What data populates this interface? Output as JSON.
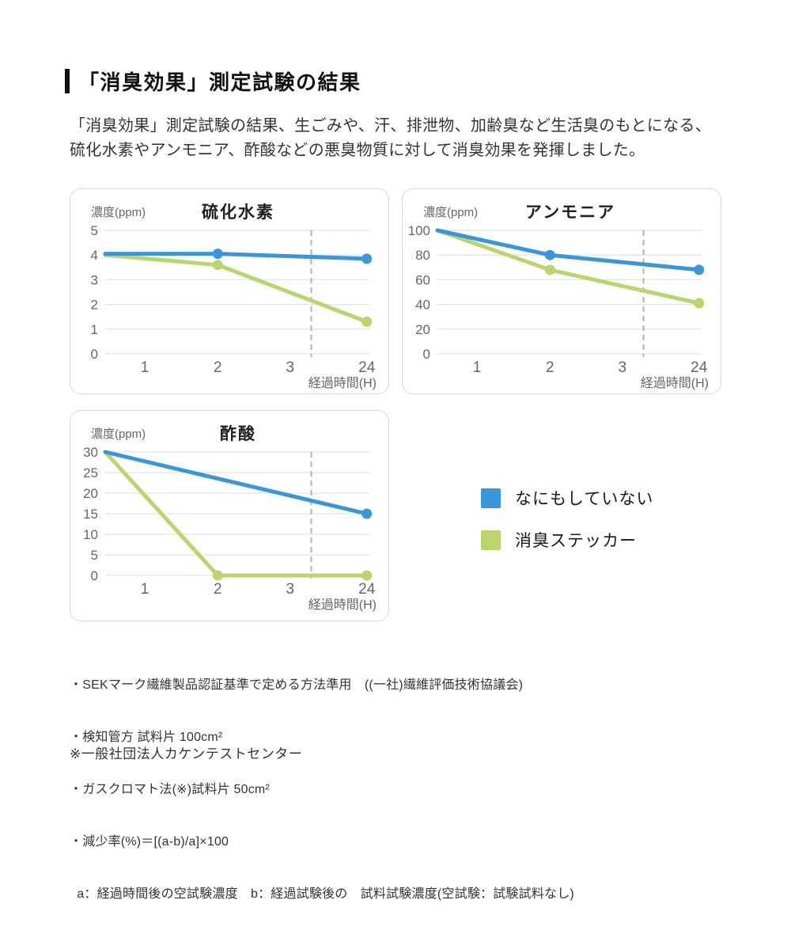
{
  "header": {
    "title": "「消臭効果」測定試験の結果"
  },
  "intro": {
    "line1": "「消臭効果」測定試験の結果、生ごみや、汗、排泄物、加齢臭など生活臭のもとになる、",
    "line2": "硫化水素やアンモニア、酢酸などの悪臭物質に対して消臭効果を発揮しました。"
  },
  "colors": {
    "blue": "#3A96DB",
    "green": "#BAD56C",
    "grid": "#e4e4e4",
    "dashed": "#b0b0b0",
    "axis_text": "#666666",
    "chart_title_text": "#222222",
    "panel_border": "#d8d8d8"
  },
  "legend": {
    "items": [
      {
        "label": "なにもしていない",
        "color": "#3A96DB"
      },
      {
        "label": "消臭ステッカー",
        "color": "#BAD56C"
      }
    ]
  },
  "chart_data": [
    {
      "type": "line",
      "title": "硫化水素",
      "ylabel": "濃度(ppm)",
      "xlabel": "経過時間(H)",
      "x_tick_labels": [
        "1",
        "2",
        "3",
        "24"
      ],
      "x_tick_hours": [
        1,
        2,
        3,
        24
      ],
      "y_ticks": [
        0,
        1,
        2,
        3,
        4,
        5
      ],
      "ylim": [
        0,
        5
      ],
      "grid": true,
      "dashed_break_line_between": "3 and 24",
      "series": [
        {
          "name": "なにもしていない",
          "color": "#3A96DB",
          "points": [
            {
              "h": 0,
              "v": 4.05
            },
            {
              "h": 2,
              "v": 4.05
            },
            {
              "h": 24,
              "v": 3.85
            }
          ],
          "marker_hours": [
            2,
            24
          ]
        },
        {
          "name": "消臭ステッカー",
          "color": "#BAD56C",
          "points": [
            {
              "h": 0,
              "v": 4.0
            },
            {
              "h": 2,
              "v": 3.6
            },
            {
              "h": 24,
              "v": 1.3
            }
          ],
          "marker_hours": [
            2,
            24
          ]
        }
      ]
    },
    {
      "type": "line",
      "title": "アンモニア",
      "ylabel": "濃度(ppm)",
      "xlabel": "経過時間(H)",
      "x_tick_labels": [
        "1",
        "2",
        "3",
        "24"
      ],
      "x_tick_hours": [
        1,
        2,
        3,
        24
      ],
      "y_ticks": [
        0,
        20,
        40,
        60,
        80,
        100
      ],
      "ylim": [
        0,
        100
      ],
      "grid": true,
      "dashed_break_line_between": "3 and 24",
      "series": [
        {
          "name": "なにもしていない",
          "color": "#3A96DB",
          "points": [
            {
              "h": 0,
              "v": 100
            },
            {
              "h": 2,
              "v": 80
            },
            {
              "h": 24,
              "v": 68
            }
          ],
          "marker_hours": [
            2,
            24
          ]
        },
        {
          "name": "消臭ステッカー",
          "color": "#BAD56C",
          "points": [
            {
              "h": 0,
              "v": 100
            },
            {
              "h": 2,
              "v": 68
            },
            {
              "h": 24,
              "v": 41
            }
          ],
          "marker_hours": [
            2,
            24
          ]
        }
      ]
    },
    {
      "type": "line",
      "title": "酢酸",
      "ylabel": "濃度(ppm)",
      "xlabel": "経過時間(H)",
      "x_tick_labels": [
        "1",
        "2",
        "3",
        "24"
      ],
      "x_tick_hours": [
        1,
        2,
        3,
        24
      ],
      "y_ticks": [
        0,
        5,
        10,
        15,
        20,
        25,
        30
      ],
      "ylim": [
        0,
        30
      ],
      "grid": true,
      "dashed_break_line_between": "3 and 24",
      "series": [
        {
          "name": "なにもしていない",
          "color": "#3A96DB",
          "points": [
            {
              "h": 0,
              "v": 30
            },
            {
              "h": 24,
              "v": 15
            }
          ],
          "marker_hours": [
            24
          ]
        },
        {
          "name": "消臭ステッカー",
          "color": "#BAD56C",
          "points": [
            {
              "h": 0,
              "v": 30
            },
            {
              "h": 2,
              "v": 0
            },
            {
              "h": 24,
              "v": 0
            }
          ],
          "marker_hours": [
            2,
            24
          ]
        }
      ]
    }
  ],
  "footnotes": {
    "items": [
      "・SEKマーク繊維製品認証基準で定める方法準用　((一社)繊維評価技術協議会)",
      "・検知管方 試料片 100cm²",
      "・ガスクロマト法(※)試料片 50cm²",
      "・減少率(%)＝[(a-b)/a]×100",
      "  a：経過時間後の空試験濃度　b：経過試験後の　試料試験濃度(空試験：試験試料なし)"
    ],
    "note": "※一般社団法人カケンテストセンター"
  }
}
